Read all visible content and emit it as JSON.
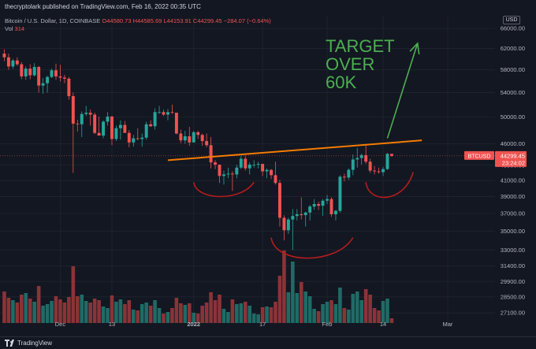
{
  "header": {
    "published": "thecryptolark published on TradingView.com, Feb 16, 2022 00:35 UTC",
    "symbol_line": "Bitcoin / U.S. Dollar, 1D, COINBASE",
    "ohlc": "O44580.73 H44585.69 L44153.91 C44299.45 −284.07 (−0.64%)",
    "vol_label": "Vol",
    "vol_value": "314",
    "currency": "USD"
  },
  "footer": {
    "brand": "TradingView"
  },
  "colors": {
    "background": "#131722",
    "up": "#26a69a",
    "down": "#ef5350",
    "up_volume": "#1f6b66",
    "down_volume": "#8a3437",
    "trendline": "#f57c00",
    "arrow_annotation": "#4caf50",
    "pattern_annotation": "#b71c1c"
  },
  "chart_data": {
    "type": "candlestick",
    "symbol": "BTCUSD",
    "interval": "1D",
    "y_scale": "log",
    "ylim": [
      26000,
      67000
    ],
    "y_ticks": [
      "66000.00",
      "62000.00",
      "58000.00",
      "54000.00",
      "50000.00",
      "46000.00",
      "43000.00",
      "41000.00",
      "39000.00",
      "37000.00",
      "35000.00",
      "33000.00",
      "31400.00",
      "29900.00",
      "28500.00",
      "27100.00"
    ],
    "x_tick_labels": [
      {
        "date": "2021-12-01",
        "label": "Dec"
      },
      {
        "date": "2021-12-13",
        "label": "13"
      },
      {
        "date": "2022-01-01",
        "label": "2022"
      },
      {
        "date": "2022-01-17",
        "label": "17"
      },
      {
        "date": "2022-02-01",
        "label": "Feb"
      },
      {
        "date": "2022-02-14",
        "label": "14"
      },
      {
        "date": "2022-03-01",
        "label": "Mar"
      }
    ],
    "x_range": [
      "2021-11-17",
      "2022-03-12"
    ],
    "price_label": {
      "symbol": "BTCUSD",
      "value": "44299.45",
      "countdown": "23:24:02"
    },
    "candles": [
      {
        "date": "2021-11-18",
        "o": 61000,
        "h": 61800,
        "l": 59600,
        "c": 60300,
        "v": 0.4
      },
      {
        "date": "2021-11-19",
        "o": 60300,
        "h": 61000,
        "l": 58000,
        "c": 58600,
        "v": 0.32
      },
      {
        "date": "2021-11-20",
        "o": 58600,
        "h": 60000,
        "l": 58200,
        "c": 59700,
        "v": 0.29
      },
      {
        "date": "2021-11-21",
        "o": 59700,
        "h": 60300,
        "l": 58700,
        "c": 59000,
        "v": 0.26
      },
      {
        "date": "2021-11-22",
        "o": 59000,
        "h": 59400,
        "l": 56300,
        "c": 56800,
        "v": 0.36
      },
      {
        "date": "2021-11-23",
        "o": 56800,
        "h": 58600,
        "l": 56200,
        "c": 58200,
        "v": 0.38
      },
      {
        "date": "2021-11-24",
        "o": 58200,
        "h": 59000,
        "l": 56300,
        "c": 57000,
        "v": 0.31
      },
      {
        "date": "2021-11-25",
        "o": 57000,
        "h": 59200,
        "l": 56800,
        "c": 58500,
        "v": 0.27
      },
      {
        "date": "2021-11-26",
        "o": 58500,
        "h": 58700,
        "l": 54000,
        "c": 55200,
        "v": 0.47
      },
      {
        "date": "2021-11-27",
        "o": 55200,
        "h": 56500,
        "l": 53800,
        "c": 55600,
        "v": 0.22
      },
      {
        "date": "2021-11-28",
        "o": 55600,
        "h": 56900,
        "l": 54000,
        "c": 56700,
        "v": 0.24
      },
      {
        "date": "2021-11-29",
        "o": 56700,
        "h": 58200,
        "l": 56500,
        "c": 57900,
        "v": 0.28
      },
      {
        "date": "2021-11-30",
        "o": 57900,
        "h": 59100,
        "l": 56200,
        "c": 56800,
        "v": 0.34
      },
      {
        "date": "2021-12-01",
        "o": 56800,
        "h": 58900,
        "l": 55900,
        "c": 56600,
        "v": 0.3
      },
      {
        "date": "2021-12-02",
        "o": 56600,
        "h": 57100,
        "l": 55600,
        "c": 56400,
        "v": 0.26
      },
      {
        "date": "2021-12-03",
        "o": 56400,
        "h": 56700,
        "l": 52800,
        "c": 53400,
        "v": 0.33
      },
      {
        "date": "2021-12-04",
        "o": 53400,
        "h": 54000,
        "l": 42000,
        "c": 49000,
        "v": 0.72
      },
      {
        "date": "2021-12-05",
        "o": 49000,
        "h": 49600,
        "l": 47800,
        "c": 48900,
        "v": 0.34
      },
      {
        "date": "2021-12-06",
        "o": 48900,
        "h": 50900,
        "l": 47000,
        "c": 50500,
        "v": 0.36
      },
      {
        "date": "2021-12-07",
        "o": 50500,
        "h": 51800,
        "l": 50200,
        "c": 50700,
        "v": 0.28
      },
      {
        "date": "2021-12-08",
        "o": 50700,
        "h": 51200,
        "l": 48700,
        "c": 50400,
        "v": 0.26
      },
      {
        "date": "2021-12-09",
        "o": 50400,
        "h": 50700,
        "l": 47400,
        "c": 47600,
        "v": 0.31
      },
      {
        "date": "2021-12-10",
        "o": 47600,
        "h": 50100,
        "l": 47200,
        "c": 47200,
        "v": 0.29
      },
      {
        "date": "2021-12-11",
        "o": 47200,
        "h": 49500,
        "l": 46800,
        "c": 49300,
        "v": 0.21
      },
      {
        "date": "2021-12-12",
        "o": 49300,
        "h": 50800,
        "l": 48700,
        "c": 50100,
        "v": 0.19
      },
      {
        "date": "2021-12-13",
        "o": 50100,
        "h": 50200,
        "l": 45800,
        "c": 46700,
        "v": 0.35
      },
      {
        "date": "2021-12-14",
        "o": 46700,
        "h": 48700,
        "l": 46400,
        "c": 48300,
        "v": 0.27
      },
      {
        "date": "2021-12-15",
        "o": 48300,
        "h": 49500,
        "l": 46600,
        "c": 48800,
        "v": 0.3
      },
      {
        "date": "2021-12-16",
        "o": 48800,
        "h": 49400,
        "l": 47600,
        "c": 47600,
        "v": 0.24
      },
      {
        "date": "2021-12-17",
        "o": 47600,
        "h": 48000,
        "l": 45500,
        "c": 46200,
        "v": 0.29
      },
      {
        "date": "2021-12-18",
        "o": 46200,
        "h": 47300,
        "l": 45600,
        "c": 46800,
        "v": 0.17
      },
      {
        "date": "2021-12-19",
        "o": 46800,
        "h": 48300,
        "l": 46500,
        "c": 46700,
        "v": 0.16
      },
      {
        "date": "2021-12-20",
        "o": 46700,
        "h": 47500,
        "l": 45600,
        "c": 46900,
        "v": 0.24
      },
      {
        "date": "2021-12-21",
        "o": 46900,
        "h": 49300,
        "l": 46600,
        "c": 48900,
        "v": 0.26
      },
      {
        "date": "2021-12-22",
        "o": 48900,
        "h": 49500,
        "l": 48500,
        "c": 48600,
        "v": 0.22
      },
      {
        "date": "2021-12-23",
        "o": 48600,
        "h": 51400,
        "l": 48100,
        "c": 50800,
        "v": 0.29
      },
      {
        "date": "2021-12-24",
        "o": 50800,
        "h": 51800,
        "l": 50500,
        "c": 50800,
        "v": 0.19
      },
      {
        "date": "2021-12-25",
        "o": 50800,
        "h": 51200,
        "l": 50200,
        "c": 50400,
        "v": 0.12
      },
      {
        "date": "2021-12-26",
        "o": 50400,
        "h": 51300,
        "l": 49500,
        "c": 50800,
        "v": 0.14
      },
      {
        "date": "2021-12-27",
        "o": 50800,
        "h": 52000,
        "l": 50500,
        "c": 50700,
        "v": 0.19
      },
      {
        "date": "2021-12-28",
        "o": 50700,
        "h": 50700,
        "l": 47400,
        "c": 47500,
        "v": 0.32
      },
      {
        "date": "2021-12-29",
        "o": 47500,
        "h": 48100,
        "l": 46100,
        "c": 46500,
        "v": 0.25
      },
      {
        "date": "2021-12-30",
        "o": 46500,
        "h": 47900,
        "l": 46000,
        "c": 47100,
        "v": 0.23
      },
      {
        "date": "2021-12-31",
        "o": 47100,
        "h": 48500,
        "l": 45700,
        "c": 46200,
        "v": 0.25
      },
      {
        "date": "2022-01-01",
        "o": 46200,
        "h": 47900,
        "l": 46200,
        "c": 47700,
        "v": 0.13
      },
      {
        "date": "2022-01-02",
        "o": 47700,
        "h": 47900,
        "l": 46700,
        "c": 47300,
        "v": 0.12
      },
      {
        "date": "2022-01-03",
        "o": 47300,
        "h": 47500,
        "l": 45700,
        "c": 46400,
        "v": 0.22
      },
      {
        "date": "2022-01-04",
        "o": 46400,
        "h": 47500,
        "l": 45500,
        "c": 45800,
        "v": 0.26
      },
      {
        "date": "2022-01-05",
        "o": 45800,
        "h": 47000,
        "l": 42600,
        "c": 43400,
        "v": 0.39
      },
      {
        "date": "2022-01-06",
        "o": 43400,
        "h": 43700,
        "l": 42500,
        "c": 43100,
        "v": 0.29
      },
      {
        "date": "2022-01-07",
        "o": 43100,
        "h": 43100,
        "l": 40700,
        "c": 41600,
        "v": 0.36
      },
      {
        "date": "2022-01-08",
        "o": 41600,
        "h": 42300,
        "l": 40500,
        "c": 41800,
        "v": 0.18
      },
      {
        "date": "2022-01-09",
        "o": 41800,
        "h": 42700,
        "l": 41300,
        "c": 41900,
        "v": 0.14
      },
      {
        "date": "2022-01-10",
        "o": 41900,
        "h": 42200,
        "l": 39700,
        "c": 41800,
        "v": 0.3
      },
      {
        "date": "2022-01-11",
        "o": 41800,
        "h": 43100,
        "l": 41300,
        "c": 42700,
        "v": 0.24
      },
      {
        "date": "2022-01-12",
        "o": 42700,
        "h": 44300,
        "l": 42500,
        "c": 43900,
        "v": 0.25
      },
      {
        "date": "2022-01-13",
        "o": 43900,
        "h": 44300,
        "l": 42300,
        "c": 42600,
        "v": 0.27
      },
      {
        "date": "2022-01-14",
        "o": 42600,
        "h": 43400,
        "l": 41800,
        "c": 43100,
        "v": 0.22
      },
      {
        "date": "2022-01-15",
        "o": 43100,
        "h": 43700,
        "l": 42700,
        "c": 43100,
        "v": 0.12
      },
      {
        "date": "2022-01-16",
        "o": 43100,
        "h": 43500,
        "l": 42600,
        "c": 43200,
        "v": 0.11
      },
      {
        "date": "2022-01-17",
        "o": 43200,
        "h": 43200,
        "l": 41600,
        "c": 42200,
        "v": 0.2
      },
      {
        "date": "2022-01-18",
        "o": 42200,
        "h": 42600,
        "l": 41300,
        "c": 42400,
        "v": 0.21
      },
      {
        "date": "2022-01-19",
        "o": 42400,
        "h": 42500,
        "l": 41200,
        "c": 41700,
        "v": 0.2
      },
      {
        "date": "2022-01-20",
        "o": 41700,
        "h": 43500,
        "l": 40500,
        "c": 40700,
        "v": 0.27
      },
      {
        "date": "2022-01-21",
        "o": 40700,
        "h": 41100,
        "l": 35500,
        "c": 36500,
        "v": 0.6
      },
      {
        "date": "2022-01-22",
        "o": 36500,
        "h": 36800,
        "l": 34000,
        "c": 35100,
        "v": 0.92
      },
      {
        "date": "2022-01-23",
        "o": 35100,
        "h": 36500,
        "l": 34700,
        "c": 36300,
        "v": 0.39
      },
      {
        "date": "2022-01-24",
        "o": 36300,
        "h": 37500,
        "l": 33000,
        "c": 36700,
        "v": 0.78
      },
      {
        "date": "2022-01-25",
        "o": 36700,
        "h": 37500,
        "l": 36200,
        "c": 36900,
        "v": 0.38
      },
      {
        "date": "2022-01-26",
        "o": 36900,
        "h": 38900,
        "l": 36300,
        "c": 36800,
        "v": 0.52
      },
      {
        "date": "2022-01-27",
        "o": 36800,
        "h": 37200,
        "l": 35500,
        "c": 37100,
        "v": 0.4
      },
      {
        "date": "2022-01-28",
        "o": 37100,
        "h": 38000,
        "l": 36200,
        "c": 37800,
        "v": 0.34
      },
      {
        "date": "2022-01-29",
        "o": 37800,
        "h": 38700,
        "l": 37400,
        "c": 38100,
        "v": 0.18
      },
      {
        "date": "2022-01-30",
        "o": 38100,
        "h": 38400,
        "l": 37400,
        "c": 37900,
        "v": 0.15
      },
      {
        "date": "2022-01-31",
        "o": 37900,
        "h": 38700,
        "l": 36700,
        "c": 38500,
        "v": 0.24
      },
      {
        "date": "2022-02-01",
        "o": 38500,
        "h": 39200,
        "l": 38100,
        "c": 38700,
        "v": 0.27
      },
      {
        "date": "2022-02-02",
        "o": 38700,
        "h": 38900,
        "l": 36600,
        "c": 36900,
        "v": 0.29
      },
      {
        "date": "2022-02-03",
        "o": 36900,
        "h": 37400,
        "l": 36200,
        "c": 37300,
        "v": 0.24
      },
      {
        "date": "2022-02-04",
        "o": 37300,
        "h": 41700,
        "l": 37100,
        "c": 41500,
        "v": 0.45
      },
      {
        "date": "2022-02-05",
        "o": 41500,
        "h": 41900,
        "l": 40900,
        "c": 41400,
        "v": 0.19
      },
      {
        "date": "2022-02-06",
        "o": 41400,
        "h": 42600,
        "l": 41100,
        "c": 42400,
        "v": 0.17
      },
      {
        "date": "2022-02-07",
        "o": 42400,
        "h": 44500,
        "l": 41700,
        "c": 43800,
        "v": 0.37
      },
      {
        "date": "2022-02-08",
        "o": 43800,
        "h": 45400,
        "l": 42700,
        "c": 44000,
        "v": 0.4
      },
      {
        "date": "2022-02-09",
        "o": 44000,
        "h": 44600,
        "l": 43100,
        "c": 44400,
        "v": 0.29
      },
      {
        "date": "2022-02-10",
        "o": 44400,
        "h": 45800,
        "l": 43200,
        "c": 43500,
        "v": 0.43
      },
      {
        "date": "2022-02-11",
        "o": 43500,
        "h": 43900,
        "l": 42000,
        "c": 42300,
        "v": 0.36
      },
      {
        "date": "2022-02-12",
        "o": 42300,
        "h": 42900,
        "l": 41800,
        "c": 42200,
        "v": 0.19
      },
      {
        "date": "2022-02-13",
        "o": 42200,
        "h": 42700,
        "l": 41900,
        "c": 42100,
        "v": 0.16
      },
      {
        "date": "2022-02-14",
        "o": 42100,
        "h": 42800,
        "l": 41600,
        "c": 42500,
        "v": 0.28
      },
      {
        "date": "2022-02-15",
        "o": 42500,
        "h": 44700,
        "l": 42400,
        "c": 44580,
        "v": 0.31
      },
      {
        "date": "2022-02-16",
        "o": 44580,
        "h": 44586,
        "l": 44154,
        "c": 44299,
        "v": 0.06
      }
    ],
    "annotations": [
      {
        "kind": "text",
        "text": [
          "TARGET",
          "OVER",
          "60K"
        ]
      },
      {
        "kind": "trendline",
        "from": {
          "date": "2021-12-26",
          "price": 43700
        },
        "to": {
          "date": "2022-02-23",
          "price": 46500
        }
      },
      {
        "kind": "arrow",
        "from": {
          "date": "2022-02-15",
          "price": 46800
        },
        "to": {
          "date": "2022-02-22",
          "price": 63000
        }
      },
      {
        "kind": "arc",
        "from": {
          "date": "2022-01-01",
          "price": 40800
        },
        "to": {
          "date": "2022-01-15",
          "price": 40800
        },
        "depth": 38800
      },
      {
        "kind": "arc",
        "from": {
          "date": "2022-01-19",
          "price": 34300
        },
        "to": {
          "date": "2022-02-07",
          "price": 34300
        },
        "depth": 31800
      },
      {
        "kind": "arc",
        "from": {
          "date": "2022-02-10",
          "price": 40800
        },
        "to": {
          "date": "2022-02-21",
          "price": 42100
        },
        "depth": 38500
      }
    ]
  }
}
